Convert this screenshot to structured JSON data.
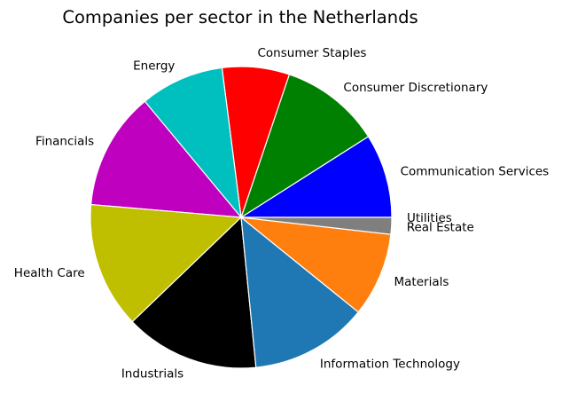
{
  "chart_data": {
    "type": "pie",
    "title": "Companies per sector in the Netherlands",
    "labels": [
      "Communication Services",
      "Consumer Discretionary",
      "Consumer Staples",
      "Energy",
      "Financials",
      "Health Care",
      "Industrials",
      "Information Technology",
      "Materials",
      "Real Estate",
      "Utilities"
    ],
    "values": [
      10,
      12,
      8,
      10,
      14,
      15,
      16,
      14,
      10,
      2,
      0
    ],
    "percentages": [
      9.0,
      10.8,
      7.2,
      9.0,
      12.6,
      13.5,
      14.4,
      12.6,
      9.0,
      1.8,
      0.0
    ],
    "colors": [
      "#0000ff",
      "#008000",
      "#ff0000",
      "#00bfbf",
      "#bf00bf",
      "#bfbf00",
      "#000000",
      "#1f77b4",
      "#ff7f0e",
      "#7f7f7f",
      "#7f7f7f"
    ],
    "start_angle": 0,
    "direction": "counterclockwise",
    "legend_position": "none",
    "slice_edge_color": "#ffffff",
    "label_color": "#000000",
    "background_color": "#ffffff"
  }
}
